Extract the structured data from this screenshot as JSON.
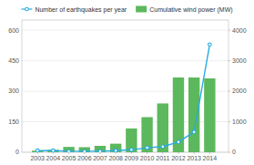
{
  "chart_data": {
    "type": "bar",
    "x": [
      2003,
      2004,
      2005,
      2006,
      2007,
      2008,
      2009,
      2010,
      2011,
      2012,
      2013,
      2014
    ],
    "xlim": [
      2002.0,
      2015.2
    ],
    "xticks": [
      2003,
      2004,
      2005,
      2006,
      2007,
      2008,
      2009,
      2010,
      2011,
      2012,
      2013,
      2014
    ],
    "ylim": [
      0,
      650
    ],
    "yticks": [
      0,
      150,
      300,
      450,
      600
    ],
    "y2lim": [
      0,
      4333
    ],
    "y2ticks": [
      0,
      1000,
      2000,
      3000,
      4000
    ],
    "grid": true,
    "legend": "top",
    "series": [
      {
        "name": "Number of earthquakes per year",
        "type": "line",
        "axis": "y",
        "color": "#29abe2",
        "marker": "circle",
        "values": [
          8,
          8,
          5,
          5,
          5,
          8,
          12,
          22,
          28,
          50,
          100,
          530
        ]
      },
      {
        "name": "Cumulative wind power (MW)",
        "type": "bar",
        "axis": "y2",
        "color": "#5cb85c",
        "values": [
          50,
          80,
          175,
          165,
          210,
          280,
          780,
          1150,
          1600,
          2450,
          2450,
          2420
        ]
      }
    ]
  }
}
